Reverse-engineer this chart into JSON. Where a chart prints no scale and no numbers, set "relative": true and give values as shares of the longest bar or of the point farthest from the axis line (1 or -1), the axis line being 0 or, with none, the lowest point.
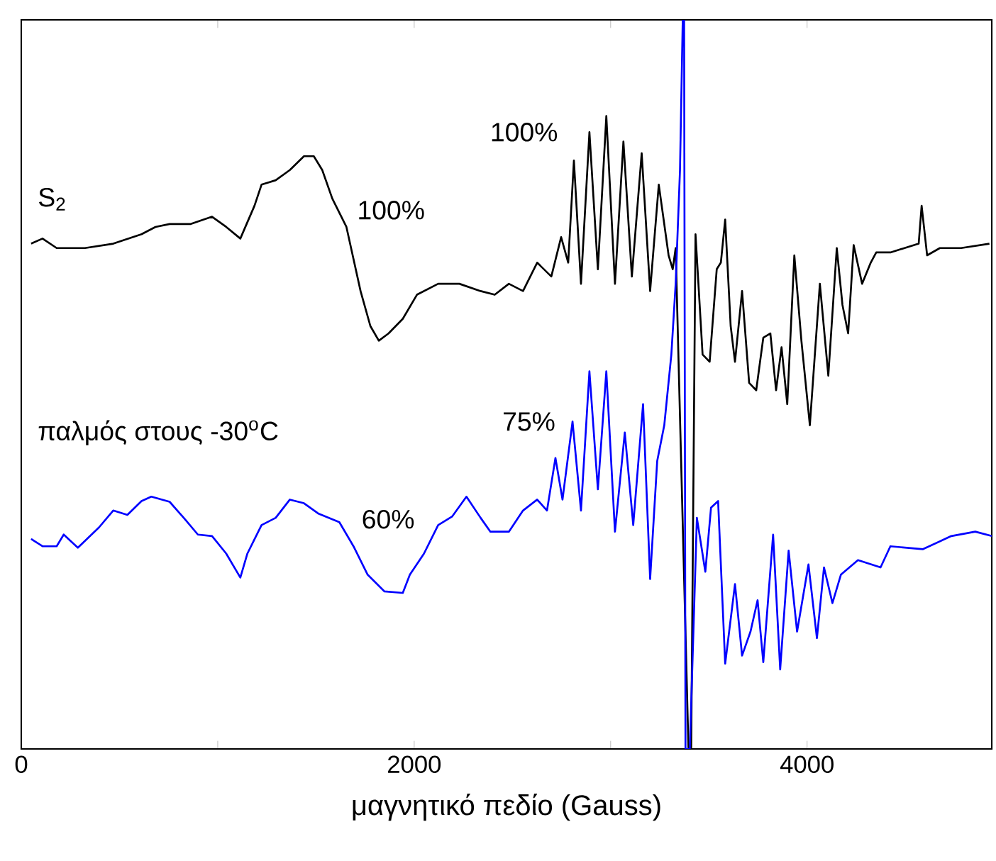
{
  "chart_data": {
    "type": "line",
    "relative": true,
    "xlabel": "μαγνητικό πεδίο (Gauss)",
    "xlim": [
      0,
      4940
    ],
    "xticks": [
      0,
      {
        "value": 1000,
        "label": null
      },
      2000,
      {
        "value": 3000,
        "label": null
      },
      4000
    ],
    "annotations": [
      "100%",
      "100%",
      "75%",
      "60%"
    ],
    "series": [
      {
        "name": "S$_{2}$",
        "color": "#000000",
        "x": [
          50,
          108,
          180,
          324,
          468,
          612,
          683,
          755,
          863,
          971,
          1043,
          1115,
          1187,
          1223,
          1295,
          1367,
          1439,
          1489,
          1532,
          1583,
          1655,
          1727,
          1777,
          1820,
          1870,
          1942,
          2014,
          2122,
          2230,
          2338,
          2410,
          2482,
          2554,
          2626,
          2698,
          2748,
          2784,
          2813,
          2849,
          2892,
          2935,
          2978,
          3022,
          3065,
          3108,
          3158,
          3201,
          3245,
          3295,
          3316,
          3331,
          3396,
          3410,
          3432,
          3468,
          3504,
          3540,
          3561,
          3583,
          3611,
          3633,
          3669,
          3705,
          3741,
          3777,
          3813,
          3842,
          3870,
          3899,
          3935,
          3971,
          4014,
          4065,
          4108,
          4151,
          4180,
          4209,
          4237,
          4280,
          4324,
          4352,
          4424,
          4496,
          4568,
          4583,
          4611,
          4676,
          4784,
          4928
        ],
        "values": [
          0.693,
          0.7,
          0.687,
          0.687,
          0.693,
          0.706,
          0.716,
          0.72,
          0.72,
          0.73,
          0.716,
          0.7,
          0.745,
          0.774,
          0.78,
          0.794,
          0.813,
          0.813,
          0.794,
          0.755,
          0.716,
          0.628,
          0.58,
          0.56,
          0.57,
          0.59,
          0.623,
          0.638,
          0.638,
          0.628,
          0.623,
          0.638,
          0.628,
          0.667,
          0.648,
          0.702,
          0.667,
          0.807,
          0.638,
          0.846,
          0.658,
          0.868,
          0.638,
          0.833,
          0.648,
          0.817,
          0.628,
          0.774,
          0.677,
          0.658,
          0.687,
          0.002,
          0.002,
          0.706,
          0.541,
          0.531,
          0.658,
          0.667,
          0.726,
          0.58,
          0.531,
          0.628,
          0.502,
          0.492,
          0.564,
          0.57,
          0.492,
          0.551,
          0.473,
          0.677,
          0.56,
          0.444,
          0.638,
          0.512,
          0.687,
          0.609,
          0.57,
          0.691,
          0.638,
          0.667,
          0.681,
          0.681,
          0.687,
          0.693,
          0.745,
          0.677,
          0.687,
          0.687,
          0.693
        ]
      },
      {
        "name": "παλμός στους -30$^{o}$C",
        "color": "#0000ff",
        "x": [
          50,
          108,
          180,
          216,
          288,
          396,
          468,
          540,
          612,
          662,
          755,
          827,
          899,
          971,
          1043,
          1115,
          1151,
          1223,
          1295,
          1367,
          1439,
          1511,
          1619,
          1691,
          1763,
          1849,
          1942,
          1978,
          2050,
          2122,
          2194,
          2266,
          2338,
          2388,
          2482,
          2554,
          2626,
          2676,
          2719,
          2755,
          2806,
          2849,
          2892,
          2935,
          2978,
          3022,
          3072,
          3115,
          3165,
          3201,
          3237,
          3273,
          3309,
          3331,
          3353,
          3367,
          3374,
          3381,
          3403,
          3439,
          3482,
          3511,
          3547,
          3583,
          3633,
          3669,
          3712,
          3748,
          3777,
          3827,
          3863,
          3906,
          3949,
          4007,
          4050,
          4086,
          4129,
          4172,
          4259,
          4374,
          4424,
          4590,
          4734,
          4856,
          4940
        ],
        "values": [
          0.288,
          0.278,
          0.278,
          0.294,
          0.276,
          0.304,
          0.327,
          0.321,
          0.34,
          0.346,
          0.339,
          0.317,
          0.294,
          0.292,
          0.268,
          0.235,
          0.268,
          0.307,
          0.317,
          0.342,
          0.337,
          0.323,
          0.311,
          0.278,
          0.239,
          0.216,
          0.214,
          0.239,
          0.268,
          0.307,
          0.319,
          0.346,
          0.317,
          0.298,
          0.298,
          0.327,
          0.342,
          0.327,
          0.399,
          0.342,
          0.449,
          0.327,
          0.518,
          0.356,
          0.518,
          0.298,
          0.434,
          0.307,
          0.473,
          0.233,
          0.395,
          0.444,
          0.541,
          0.638,
          0.794,
          1.0,
          1.0,
          0.0,
          0.0,
          0.317,
          0.243,
          0.331,
          0.34,
          0.117,
          0.226,
          0.128,
          0.161,
          0.204,
          0.119,
          0.294,
          0.109,
          0.272,
          0.161,
          0.253,
          0.152,
          0.249,
          0.2,
          0.239,
          0.259,
          0.249,
          0.278,
          0.274,
          0.292,
          0.298,
          0.292
        ]
      }
    ]
  }
}
